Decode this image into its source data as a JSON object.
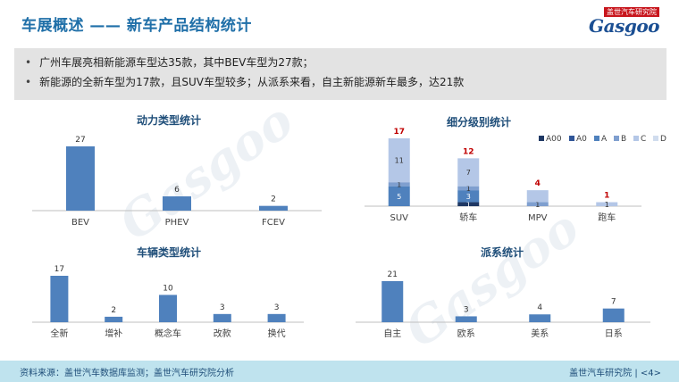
{
  "header": {
    "title": "车展概述 —— 新车产品结构统计"
  },
  "logo": {
    "top_text": "盖世汽车研究院",
    "main_text": "Gasgoo"
  },
  "summary": {
    "items": [
      "广州车展亮相新能源车型达35款，其中BEV车型为27款；",
      "新能源的全新车型为17款，且SUV车型较多；从派系来看，自主新能源新车最多，达21款"
    ]
  },
  "chart_data": [
    {
      "type": "bar",
      "title": "动力类型统计",
      "categories": [
        "BEV",
        "PHEV",
        "FCEV"
      ],
      "values": [
        27,
        6,
        2
      ],
      "color": "#4f81bd"
    },
    {
      "type": "bar",
      "stacked": true,
      "title": "细分级别统计",
      "categories": [
        "SUV",
        "轿车",
        "MPV",
        "跑车"
      ],
      "totals": [
        17,
        12,
        4,
        1
      ],
      "total_label_color": "#c00000",
      "legend": "top-right",
      "series": [
        {
          "name": "A00",
          "color": "#1f3864",
          "values": [
            0,
            1,
            0,
            0
          ]
        },
        {
          "name": "A0",
          "color": "#2f5597",
          "values": [
            0,
            0,
            0,
            0
          ]
        },
        {
          "name": "A",
          "color": "#4f81bd",
          "values": [
            5,
            3,
            0,
            0
          ]
        },
        {
          "name": "B",
          "color": "#7f9fcf",
          "values": [
            1,
            1,
            1,
            0
          ]
        },
        {
          "name": "C",
          "color": "#b4c7e7",
          "values": [
            11,
            7,
            3,
            1
          ]
        },
        {
          "name": "D",
          "color": "#d0dcee",
          "values": [
            0,
            0,
            0,
            0
          ]
        }
      ],
      "segment_labels": [
        [
          "",
          "",
          "5",
          "1",
          "11",
          ""
        ],
        [
          "1",
          "",
          "3",
          "1",
          "7",
          ""
        ],
        [
          "",
          "",
          "",
          "1",
          "",
          ""
        ],
        [
          "",
          "",
          "",
          "",
          "1",
          ""
        ]
      ]
    },
    {
      "type": "bar",
      "title": "车辆类型统计",
      "categories": [
        "全新",
        "增补",
        "概念车",
        "改款",
        "换代"
      ],
      "values": [
        17,
        2,
        10,
        3,
        3
      ],
      "color": "#4f81bd"
    },
    {
      "type": "bar",
      "title": "派系统计",
      "categories": [
        "自主",
        "欧系",
        "美系",
        "日系"
      ],
      "values": [
        21,
        3,
        4,
        7
      ],
      "color": "#4f81bd"
    }
  ],
  "footer": {
    "source": "资料来源：盖世汽车数据库监测；盖世汽车研究院分析",
    "page": "盖世汽车研究院 | <4>"
  }
}
